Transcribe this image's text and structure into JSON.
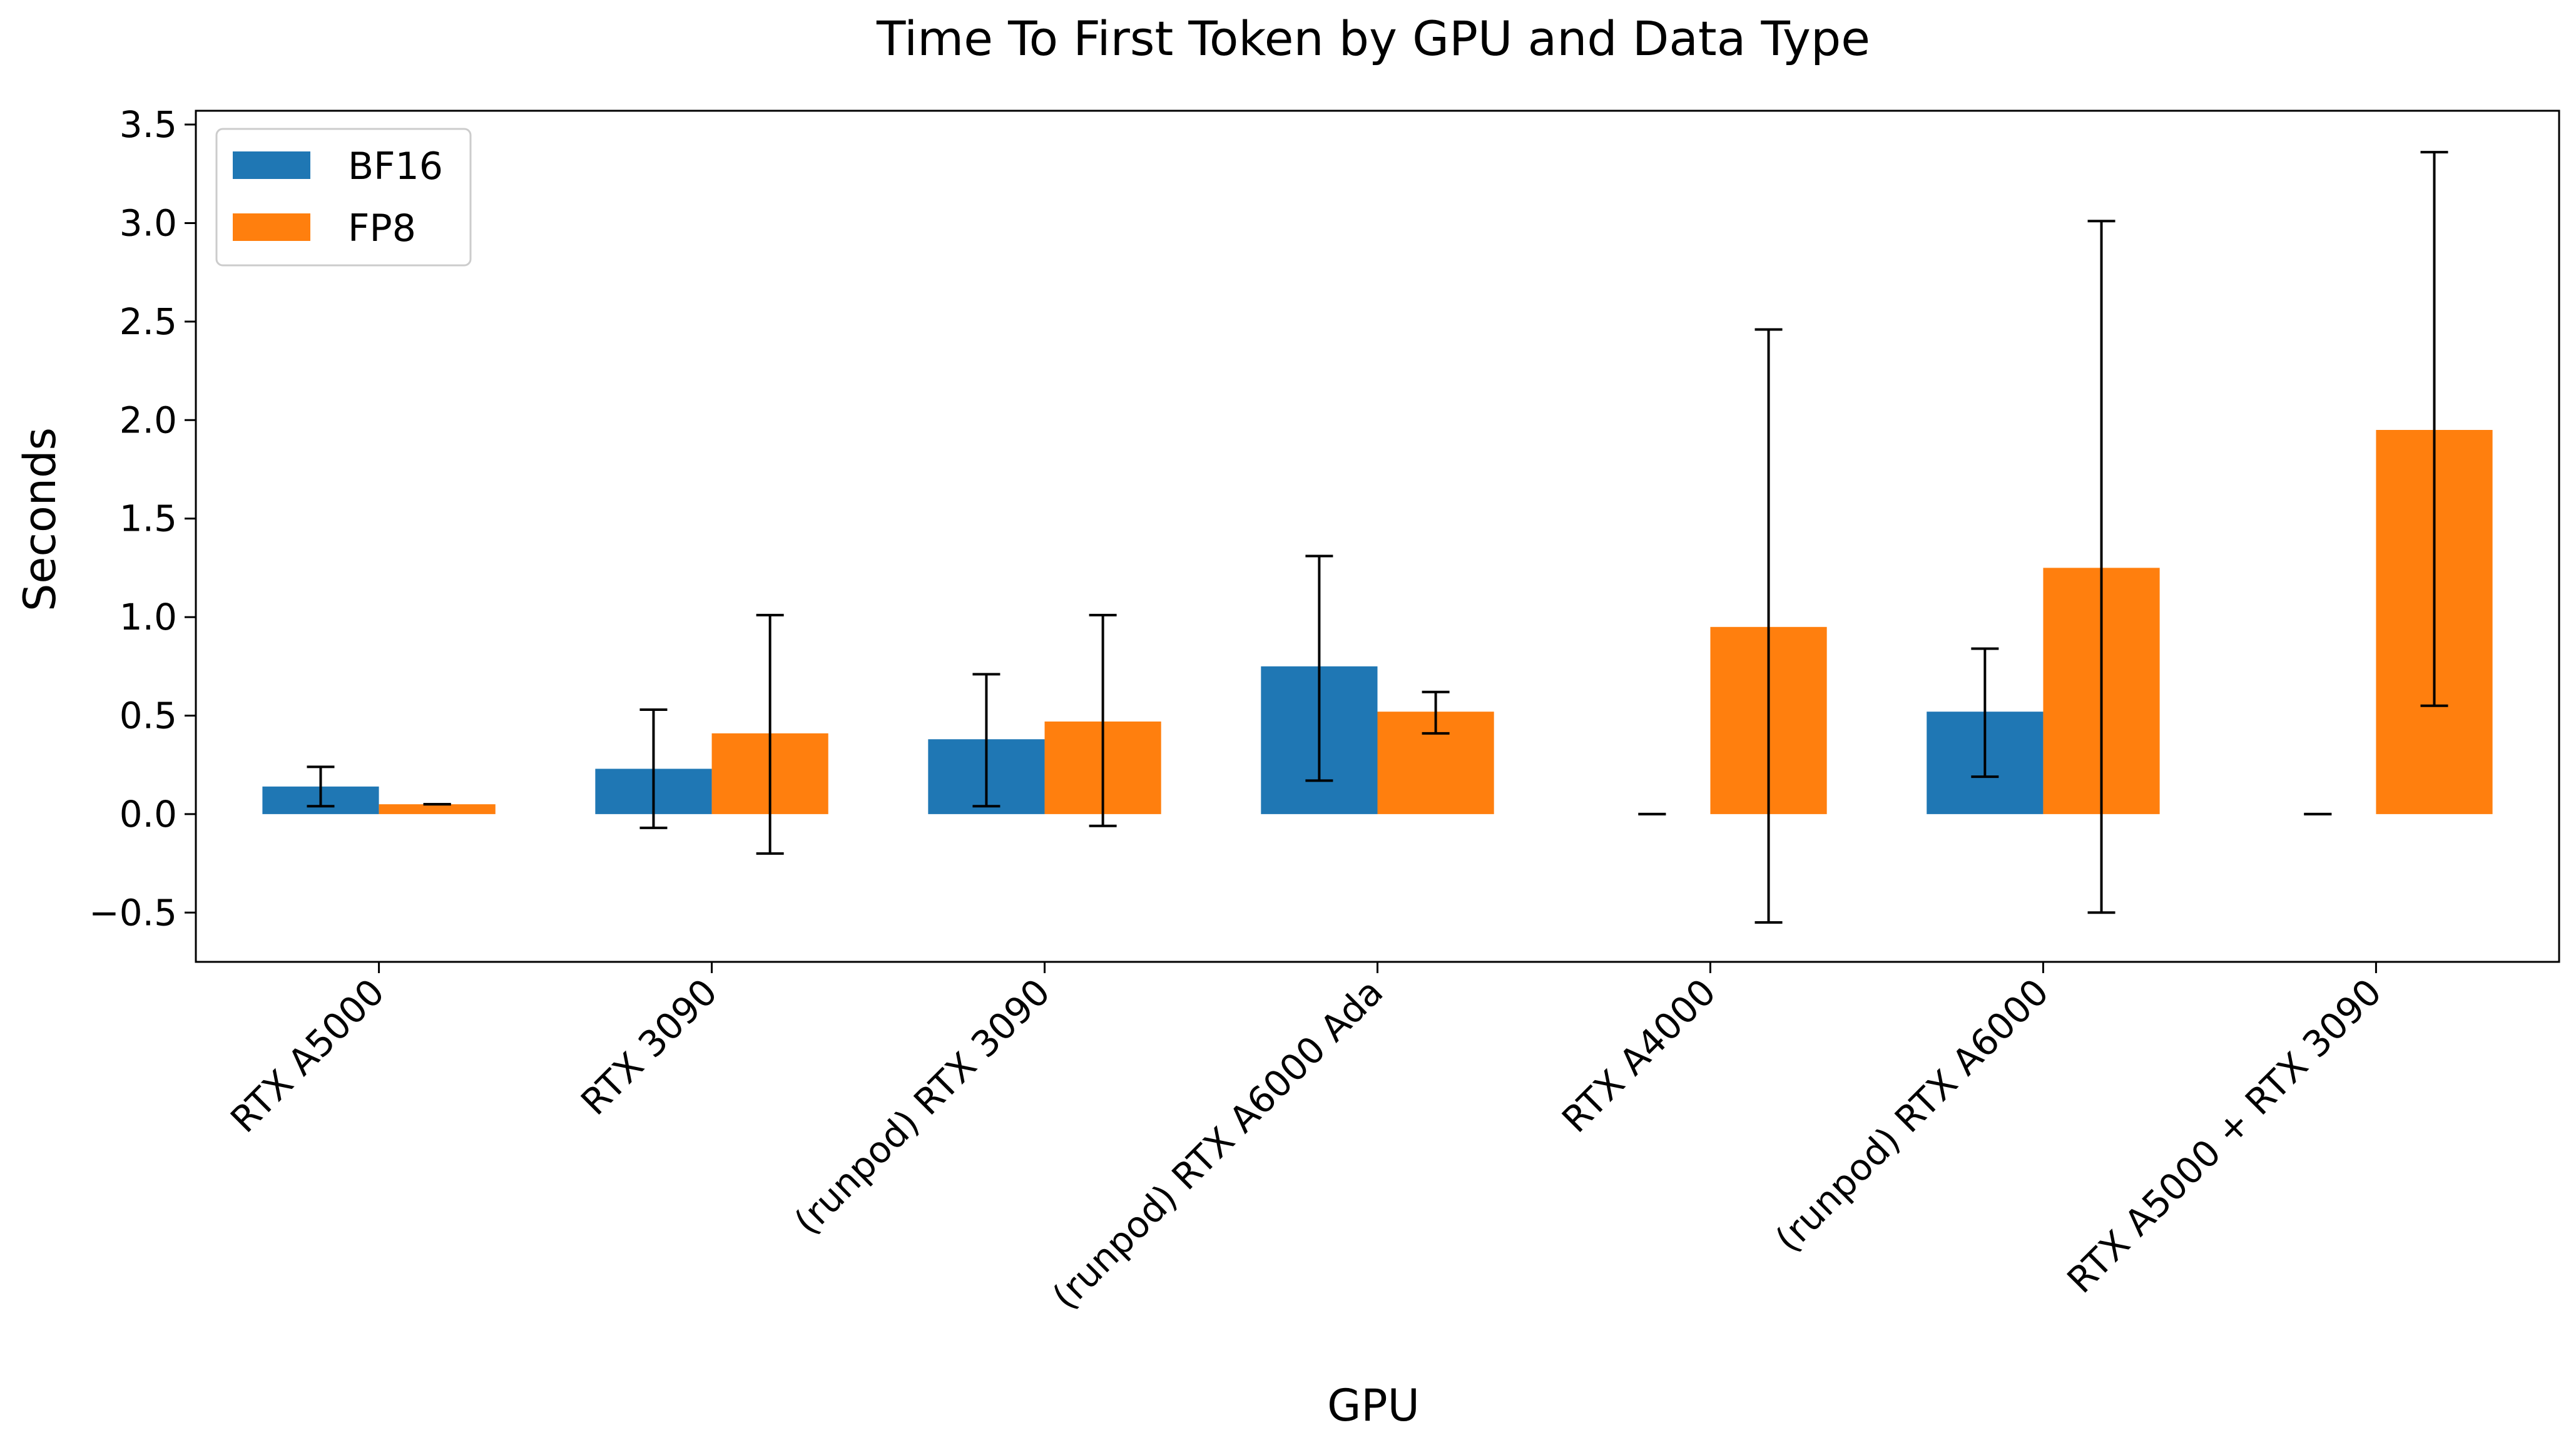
{
  "chart_data": {
    "type": "bar",
    "title": "Time To First Token by GPU and Data Type",
    "xlabel": "GPU",
    "ylabel": "Seconds",
    "categories": [
      "RTX A5000",
      "RTX 3090",
      "(runpod) RTX 3090",
      "(runpod) RTX A6000 Ada",
      "RTX A4000",
      "(runpod) RTX A6000",
      "RTX A5000 + RTX 3090"
    ],
    "series": [
      {
        "name": "BF16",
        "color": "#1f77b4",
        "values": [
          0.14,
          0.23,
          0.38,
          0.75,
          0.0,
          0.52,
          0.0
        ],
        "error_low": [
          0.04,
          -0.07,
          0.04,
          0.17,
          0.0,
          0.19,
          0.0
        ],
        "error_high": [
          0.24,
          0.53,
          0.71,
          1.31,
          0.0,
          0.84,
          0.0
        ]
      },
      {
        "name": "FP8",
        "color": "#ff7f0e",
        "values": [
          0.05,
          0.41,
          0.47,
          0.52,
          0.95,
          1.25,
          1.95
        ],
        "error_low": [
          0.05,
          -0.2,
          -0.06,
          0.41,
          -0.55,
          -0.5,
          0.55
        ],
        "error_high": [
          0.05,
          1.01,
          1.01,
          0.62,
          2.46,
          3.01,
          3.36
        ]
      }
    ],
    "ylim": [
      -0.75,
      3.57
    ],
    "yticks": [
      -0.5,
      0.0,
      0.5,
      1.0,
      1.5,
      2.0,
      2.5,
      3.0,
      3.5
    ],
    "ytick_labels": [
      "−0.5",
      "0.0",
      "0.5",
      "1.0",
      "1.5",
      "2.0",
      "2.5",
      "3.0",
      "3.5"
    ],
    "legend": "top-left",
    "grid": false,
    "error_bars": true
  }
}
